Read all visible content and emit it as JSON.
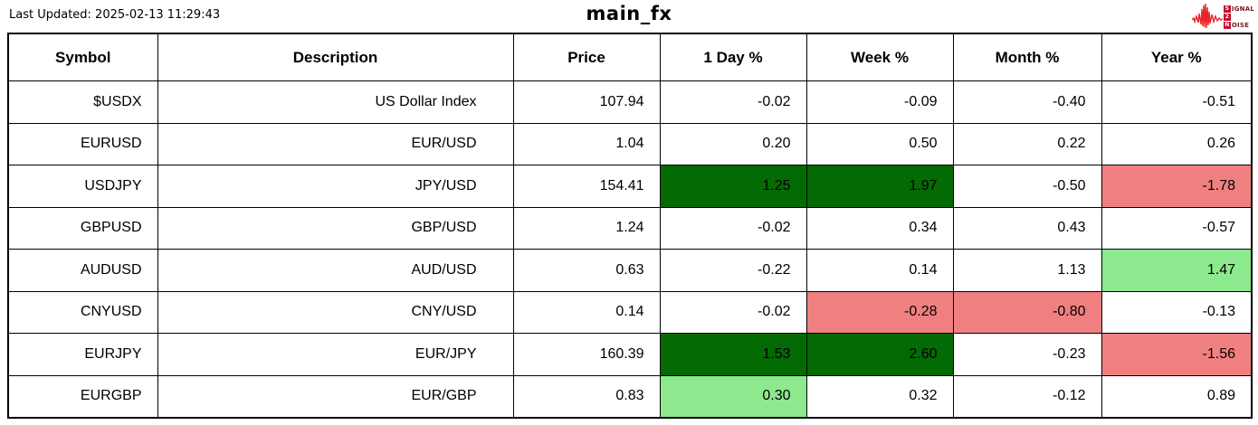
{
  "header": {
    "last_updated": "Last Updated: 2025-02-13 11:29:43",
    "title": "main_fx"
  },
  "logo": {
    "lines": [
      {
        "box": "S",
        "rest": "IGNAL"
      },
      {
        "box": "2",
        "rest": ""
      },
      {
        "box": "N",
        "rest": "OISE"
      }
    ]
  },
  "colors": {
    "strong_green": "#046A04",
    "light_green": "#8DE98D",
    "red": "#F08080",
    "logo_red": "#C8102E",
    "logo_wave_red": "#E8252A",
    "border": "#000000"
  },
  "chart_data": {
    "type": "table",
    "title": "main_fx",
    "columns": [
      "Symbol",
      "Description",
      "Price",
      "1 Day %",
      "Week %",
      "Month %",
      "Year %"
    ],
    "rows": [
      {
        "cells": [
          "$USDX",
          "US Dollar Index",
          "107.94",
          "-0.02",
          "-0.09",
          "-0.40",
          "-0.51"
        ],
        "bg": [
          null,
          null,
          null,
          null,
          null,
          null,
          null
        ]
      },
      {
        "cells": [
          "EURUSD",
          "EUR/USD",
          "1.04",
          "0.20",
          "0.50",
          "0.22",
          "0.26"
        ],
        "bg": [
          null,
          null,
          null,
          null,
          null,
          null,
          null
        ]
      },
      {
        "cells": [
          "USDJPY",
          "JPY/USD",
          "154.41",
          "1.25",
          "1.97",
          "-0.50",
          "-1.78"
        ],
        "bg": [
          null,
          null,
          null,
          "strong_green",
          "strong_green",
          null,
          "red"
        ]
      },
      {
        "cells": [
          "GBPUSD",
          "GBP/USD",
          "1.24",
          "-0.02",
          "0.34",
          "0.43",
          "-0.57"
        ],
        "bg": [
          null,
          null,
          null,
          null,
          null,
          null,
          null
        ]
      },
      {
        "cells": [
          "AUDUSD",
          "AUD/USD",
          "0.63",
          "-0.22",
          "0.14",
          "1.13",
          "1.47"
        ],
        "bg": [
          null,
          null,
          null,
          null,
          null,
          null,
          "light_green"
        ]
      },
      {
        "cells": [
          "CNYUSD",
          "CNY/USD",
          "0.14",
          "-0.02",
          "-0.28",
          "-0.80",
          "-0.13"
        ],
        "bg": [
          null,
          null,
          null,
          null,
          "red",
          "red",
          null
        ]
      },
      {
        "cells": [
          "EURJPY",
          "EUR/JPY",
          "160.39",
          "1.53",
          "2.60",
          "-0.23",
          "-1.56"
        ],
        "bg": [
          null,
          null,
          null,
          "strong_green",
          "strong_green",
          null,
          "red"
        ]
      },
      {
        "cells": [
          "EURGBP",
          "EUR/GBP",
          "0.83",
          "0.30",
          "0.32",
          "-0.12",
          "0.89"
        ],
        "bg": [
          null,
          null,
          null,
          "light_green",
          null,
          null,
          null
        ]
      }
    ]
  }
}
